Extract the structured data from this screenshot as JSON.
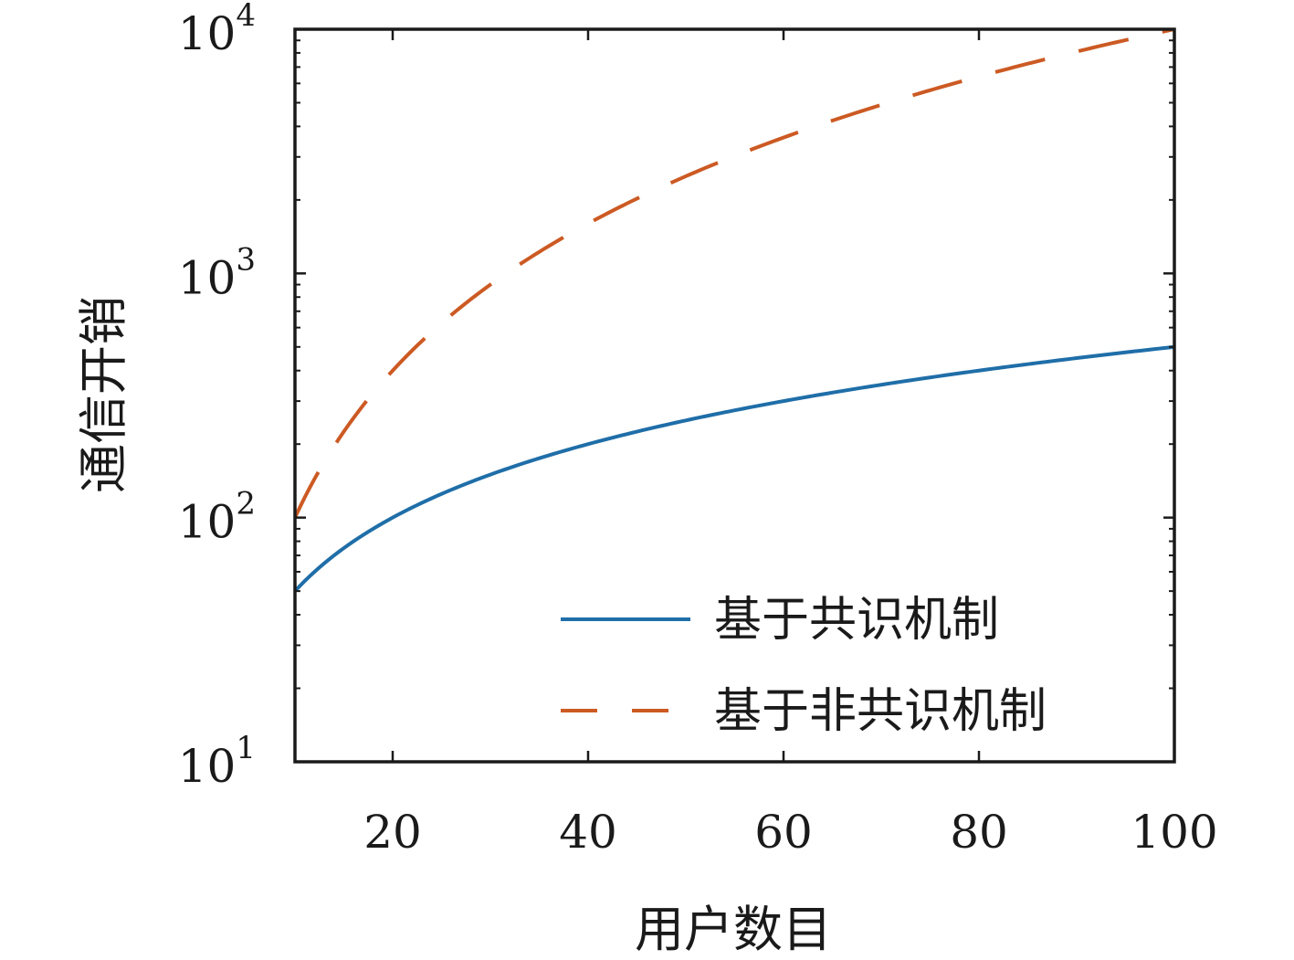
{
  "chart_data": {
    "type": "line",
    "xlabel": "用户数目",
    "ylabel": "通信开销",
    "xlim": [
      10,
      100
    ],
    "ylim": [
      10,
      10000
    ],
    "y_scale": "log",
    "grid": false,
    "legend_position": "bottom-right",
    "x_ticks": [
      20,
      40,
      60,
      80,
      100
    ],
    "x_tick_labels": [
      "20",
      "40",
      "60",
      "80",
      "100"
    ],
    "y_ticks": [
      10,
      100,
      1000,
      10000
    ],
    "y_tick_labels": [
      {
        "base": "10",
        "exp": "1"
      },
      {
        "base": "10",
        "exp": "2"
      },
      {
        "base": "10",
        "exp": "3"
      },
      {
        "base": "10",
        "exp": "4"
      }
    ],
    "series": [
      {
        "name": "基于共识机制",
        "color": "#1f6ea8",
        "line_style": "solid",
        "x": [
          10,
          20,
          30,
          40,
          50,
          60,
          70,
          80,
          90,
          100
        ],
        "y": [
          50,
          100,
          150,
          200,
          250,
          300,
          350,
          400,
          450,
          500
        ]
      },
      {
        "name": "基于非共识机制",
        "color": "#cc5a23",
        "line_style": "dashed",
        "x": [
          10,
          20,
          30,
          40,
          50,
          60,
          70,
          80,
          90,
          100
        ],
        "y": [
          100,
          400,
          900,
          1600,
          2500,
          3600,
          4900,
          6400,
          8100,
          10000
        ]
      }
    ]
  }
}
